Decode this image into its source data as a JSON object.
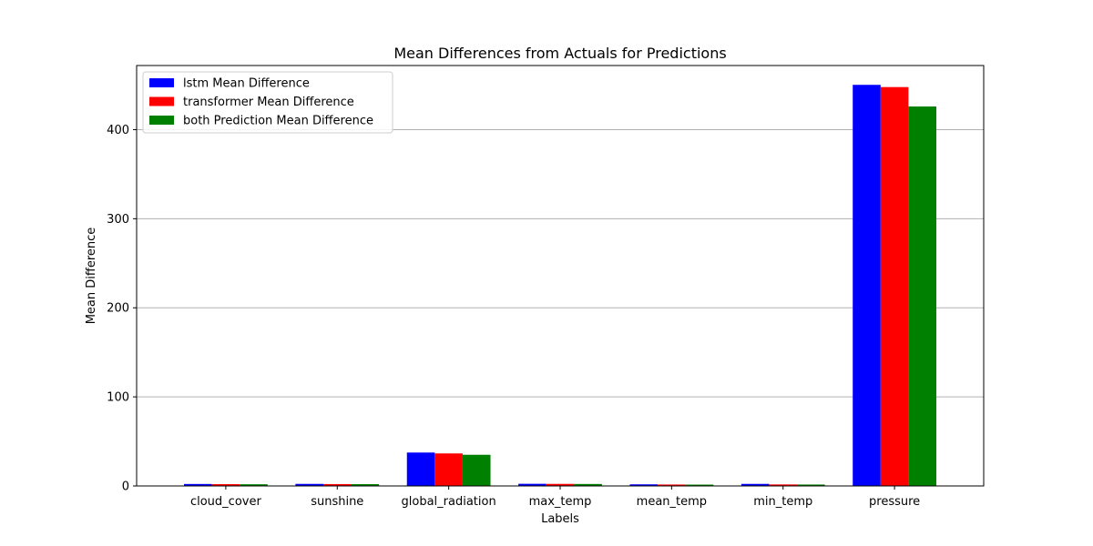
{
  "chart_data": {
    "type": "bar",
    "title": "Mean Differences from Actuals for Predictions",
    "xlabel": "Labels",
    "ylabel": "Mean Difference",
    "ylim": [
      0,
      472
    ],
    "yticks": [
      0,
      100,
      200,
      300,
      400
    ],
    "grid": "horizontal",
    "legend_position": "top-left",
    "categories": [
      "cloud_cover",
      "sunshine",
      "global_radiation",
      "max_temp",
      "mean_temp",
      "min_temp",
      "pressure"
    ],
    "series": [
      {
        "name": "lstm  Mean Difference",
        "color": "#0000ff",
        "values": [
          2.2,
          2.3,
          37.5,
          2.4,
          1.8,
          2.3,
          450.3
        ]
      },
      {
        "name": "transformer Mean Difference",
        "color": "#ff0000",
        "values": [
          2.0,
          2.1,
          36.5,
          2.3,
          1.6,
          1.7,
          447.8
        ]
      },
      {
        "name": "both Prediction Mean Difference",
        "color": "#008000",
        "values": [
          1.9,
          2.0,
          35.0,
          2.2,
          1.5,
          1.6,
          426.0
        ]
      }
    ]
  }
}
